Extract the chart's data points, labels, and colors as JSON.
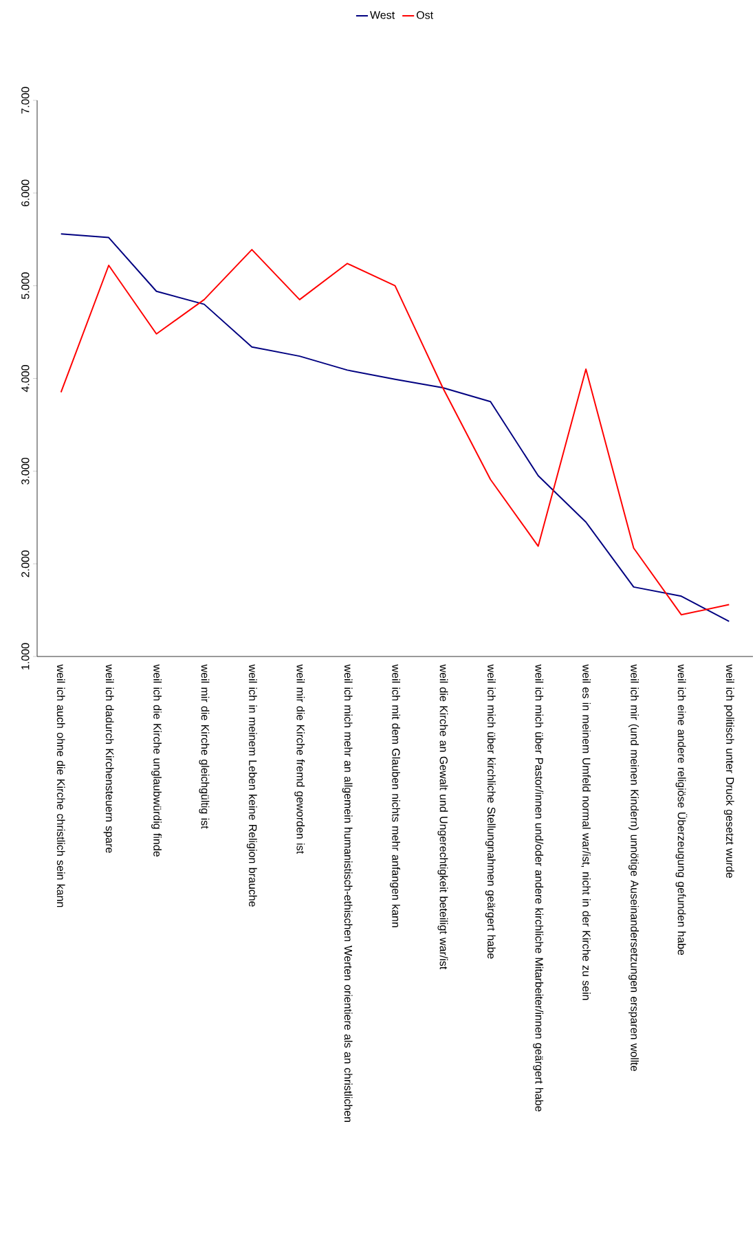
{
  "chart_data": {
    "type": "line",
    "categories": [
      "weil ich auch ohne die Kirche christlich sein kann",
      "weil ich dadurch Kirchensteuern spare",
      "weil ich die Kirche unglaubwürdig finde",
      "weil mir die Kirche gleichgültig ist",
      "weil ich in meinem Leben keine Religion brauche",
      "weil mir die Kirche fremd geworden ist",
      "weil ich mich mehr an allgemein humanistisch-ethischen Werten orientiere als an christlichen",
      "weil ich mit dem Glauben nichts mehr anfangen kann",
      "weil die Kirche an Gewalt und Ungerechtigkeit beteiligt war/ist",
      "weil ich mich über kirchliche Stellungnahmen geärgert habe",
      "weil ich mich über Pastor/innen und/oder andere kirchliche Mitarbeiter/innen geärgert habe",
      "weil es in meinem Umfeld normal war/ist, nicht in der Kirche zu sein",
      "weil ich mir (und meinen Kindern) unnötige Auseinandersetzungen ersparen wollte",
      "weil ich eine andere religiöse Überzeugung gefunden habe",
      "weil ich politisch unter Druck gesetzt wurde"
    ],
    "series": [
      {
        "name": "West",
        "color": "#000080",
        "values": [
          5560,
          5520,
          4940,
          4800,
          4340,
          4240,
          4090,
          3990,
          3900,
          3750,
          2950,
          2450,
          1750,
          1650,
          1380
        ]
      },
      {
        "name": "Ost",
        "color": "#ff0000",
        "values": [
          3850,
          5220,
          4480,
          4850,
          5390,
          4850,
          5240,
          5000,
          3900,
          2910,
          2190,
          4100,
          2170,
          1450,
          1560
        ]
      }
    ],
    "ylim": [
      1000,
      7000
    ],
    "yticks": [
      {
        "value": 1000,
        "label": "1.000"
      },
      {
        "value": 2000,
        "label": "2.000"
      },
      {
        "value": 3000,
        "label": "3.000"
      },
      {
        "value": 4000,
        "label": "4.000"
      },
      {
        "value": 5000,
        "label": "5.000"
      },
      {
        "value": 6000,
        "label": "6.000"
      },
      {
        "value": 7000,
        "label": "7.000"
      }
    ],
    "legend": "top",
    "marker": "none",
    "line_style": "solid"
  }
}
